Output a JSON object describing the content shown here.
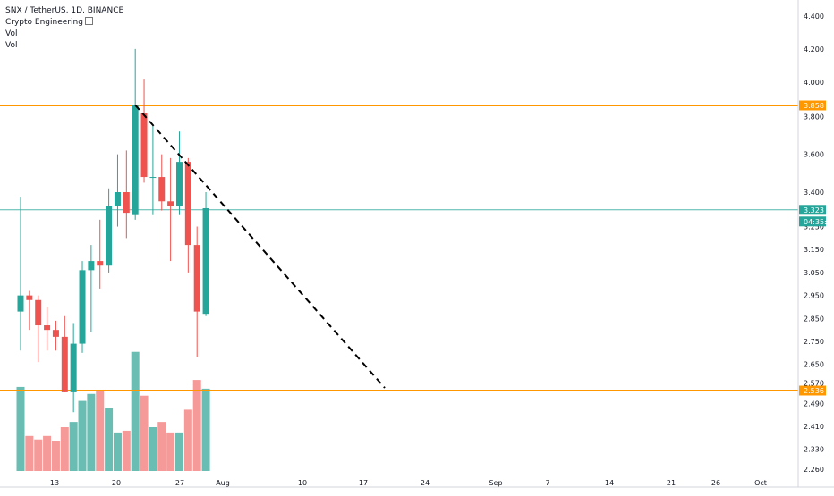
{
  "legend": {
    "title": "SNX / TetherUS, 1D, BINANCE",
    "indicator": "Crypto Engineering",
    "indicator_icon": "settings-icon",
    "vol_1": "Vol",
    "vol_2": "Vol"
  },
  "colors": {
    "up": "#26a69a",
    "down": "#ef5350",
    "vol_up": "#69bdb3",
    "vol_down": "#f59a98",
    "level_line": "#ff9800",
    "price_line": "#26a69a",
    "trend_line": "#000000",
    "axis_text": "#131722"
  },
  "price_axis": {
    "ticks": [
      "4.400",
      "4.200",
      "4.000",
      "3.800",
      "3.600",
      "3.400",
      "3.250",
      "3.150",
      "3.050",
      "2.950",
      "2.850",
      "2.750",
      "2.650",
      "2.570",
      "2.490",
      "2.410",
      "2.330",
      "2.260"
    ],
    "level_high_label": "3.858",
    "level_low_label": "2.536",
    "current_price_label": "3.323",
    "countdown_label": "04:35:48"
  },
  "time_axis": {
    "labels": [
      "13",
      "20",
      "27",
      "Aug",
      "10",
      "17",
      "24",
      "Sep",
      "7",
      "14",
      "21",
      "26",
      "Oct"
    ]
  },
  "chart_data": {
    "type": "candlestick",
    "symbol": "SNX / TetherUS",
    "interval": "1D",
    "exchange": "BINANCE",
    "candles": [
      {
        "open": 2.88,
        "high": 3.38,
        "low": 2.71,
        "close": 2.95
      },
      {
        "open": 2.95,
        "high": 2.97,
        "low": 2.8,
        "close": 2.93
      },
      {
        "open": 2.93,
        "high": 2.95,
        "low": 2.66,
        "close": 2.82
      },
      {
        "open": 2.82,
        "high": 2.9,
        "low": 2.71,
        "close": 2.8
      },
      {
        "open": 2.8,
        "high": 2.84,
        "low": 2.71,
        "close": 2.77
      },
      {
        "open": 2.77,
        "high": 2.86,
        "low": 2.53,
        "close": 2.53
      },
      {
        "open": 2.53,
        "high": 2.83,
        "low": 2.46,
        "close": 2.74
      },
      {
        "open": 2.74,
        "high": 3.1,
        "low": 2.7,
        "close": 3.06
      },
      {
        "open": 3.06,
        "high": 3.17,
        "low": 2.79,
        "close": 3.1
      },
      {
        "open": 3.1,
        "high": 3.28,
        "low": 2.98,
        "close": 3.08
      },
      {
        "open": 3.08,
        "high": 3.42,
        "low": 3.05,
        "close": 3.34
      },
      {
        "open": 3.34,
        "high": 3.6,
        "low": 3.25,
        "close": 3.4
      },
      {
        "open": 3.4,
        "high": 3.62,
        "low": 3.2,
        "close": 3.31
      },
      {
        "open": 3.3,
        "high": 4.2,
        "low": 3.28,
        "close": 3.86
      },
      {
        "open": 3.82,
        "high": 4.02,
        "low": 3.45,
        "close": 3.48
      },
      {
        "open": 3.48,
        "high": 3.75,
        "low": 3.3,
        "close": 3.48
      },
      {
        "open": 3.48,
        "high": 3.6,
        "low": 3.32,
        "close": 3.36
      },
      {
        "open": 3.36,
        "high": 3.58,
        "low": 3.1,
        "close": 3.34
      },
      {
        "open": 3.34,
        "high": 3.72,
        "low": 3.3,
        "close": 3.56
      },
      {
        "open": 3.56,
        "high": 3.58,
        "low": 3.05,
        "close": 3.17
      },
      {
        "open": 3.17,
        "high": 3.25,
        "low": 2.68,
        "close": 2.88
      },
      {
        "open": 2.87,
        "high": 3.4,
        "low": 2.86,
        "close": 3.33
      }
    ],
    "volume_relative": [
      0.48,
      0.2,
      0.18,
      0.2,
      0.17,
      0.25,
      0.28,
      0.4,
      0.44,
      0.46,
      0.36,
      0.22,
      0.23,
      0.68,
      0.43,
      0.25,
      0.28,
      0.22,
      0.22,
      0.35,
      0.52,
      0.47
    ],
    "horizontal_levels": [
      3.858,
      2.536
    ],
    "current_price": 3.323,
    "trendline": {
      "from": {
        "bar": 13,
        "price": 3.86
      },
      "to": {
        "date": "Aug 19",
        "price": 2.536
      },
      "style": "dashed"
    },
    "y_scale": "log",
    "x_axis_labels": [
      "13",
      "20",
      "27",
      "Aug",
      "10",
      "17",
      "24",
      "Sep",
      "7",
      "14",
      "21",
      "26",
      "Oct"
    ]
  }
}
